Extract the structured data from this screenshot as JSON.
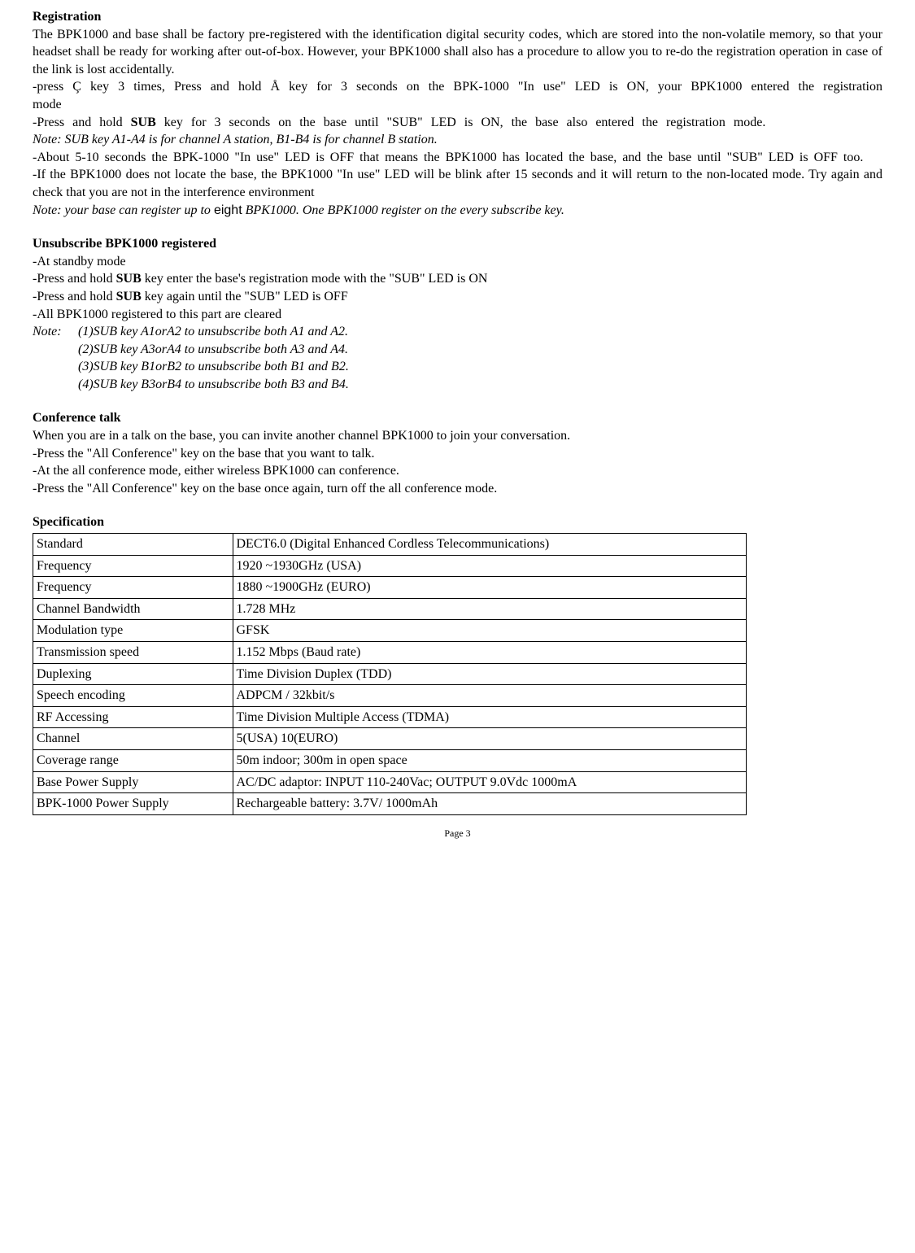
{
  "registration": {
    "heading": "Registration",
    "p1": "The BPK1000 and base shall be factory pre-registered with the identification digital security codes, which are stored into the non-volatile memory, so that your headset shall be ready for working after out-of-box. However, your BPK1000 shall also has a procedure to allow you to re-do the registration operation in case of the link is lost accidentally.",
    "p2a": "-press ",
    "p2b": " key 3 times, Press and hold ",
    "p2c": " key for 3 seconds on the BPK-1000 \"In use\" LED is ON, your BPK1000 entered the registration mode",
    "key1": "Ç",
    "key2": "Å",
    "p3a": "-Press and hold ",
    "p3b": "SUB",
    "p3c": " key for 3 seconds on the base until \"SUB\" LED is ON, the base also entered the registration mode.",
    "note1": "Note: SUB key A1-A4 is for channel A station, B1-B4 is for channel B station.",
    "p4": "-About 5-10 seconds the BPK-1000 \"In use\" LED is OFF that means the BPK1000 has located the base, and the base until \"SUB\" LED is OFF too.",
    "p5": "-If the BPK1000 does not locate the base, the BPK1000 \"In use\" LED will be blink after 15 seconds and it will return to the non-located mode. Try again and check that you are not in the interference environment",
    "note2a": "Note: your base can register up to ",
    "note2b": "eight",
    "note2c": " BPK1000. One BPK1000 register on the every subscribe key."
  },
  "unsubscribe": {
    "heading": "Unsubscribe BPK1000 registered",
    "l1": "-At standby mode",
    "l2a": "-Press and hold ",
    "l2b": "SUB",
    "l2c": " key enter the base's registration mode with the \"SUB\" LED is ON",
    "l3a": "-Press and hold ",
    "l3b": "SUB",
    "l3c": " key again until the \"SUB\" LED is OFF",
    "l4": "-All BPK1000 registered to this part are cleared",
    "note_label": "Note:",
    "n1": "(1)SUB key A1orA2 to unsubscribe both A1 and A2.",
    "n2": "(2)SUB key A3orA4 to unsubscribe both A3 and A4.",
    "n3": "(3)SUB key B1orB2 to unsubscribe both B1 and B2.",
    "n4": "(4)SUB key B3orB4 to unsubscribe both B3 and B4."
  },
  "conference": {
    "heading": "Conference talk",
    "l1": "When you are in a talk on the base, you can invite another channel BPK1000 to join your conversation.",
    "l2": "-Press the \"All Conference\" key on the base that you want to talk.",
    "l3": "-At the all conference mode, either wireless BPK1000 can conference.",
    "l4": "-Press the \"All Conference\" key on the base once again, turn off the all conference mode."
  },
  "spec": {
    "heading": "Specification",
    "rows": [
      [
        "Standard",
        "DECT6.0 (Digital Enhanced Cordless Telecommunications)"
      ],
      [
        "Frequency",
        "1920 ~1930GHz (USA)"
      ],
      [
        "Frequency",
        "1880 ~1900GHz (EURO)"
      ],
      [
        "Channel Bandwidth",
        "1.728 MHz"
      ],
      [
        "Modulation type",
        "GFSK"
      ],
      [
        "Transmission speed",
        "1.152 Mbps (Baud rate)"
      ],
      [
        "Duplexing",
        "Time Division Duplex (TDD)"
      ],
      [
        "Speech encoding",
        "ADPCM / 32kbit/s"
      ],
      [
        "RF Accessing",
        "Time Division Multiple Access (TDMA)"
      ],
      [
        "Channel",
        "5(USA) 10(EURO)"
      ],
      [
        "Coverage range",
        "50m indoor; 300m in open space"
      ],
      [
        "Base Power Supply",
        "AC/DC adaptor: INPUT 110-240Vac; OUTPUT 9.0Vdc 1000mA"
      ],
      [
        "BPK-1000 Power Supply",
        "Rechargeable battery: 3.7V/ 1000mAh"
      ]
    ]
  },
  "footer": "Page 3"
}
